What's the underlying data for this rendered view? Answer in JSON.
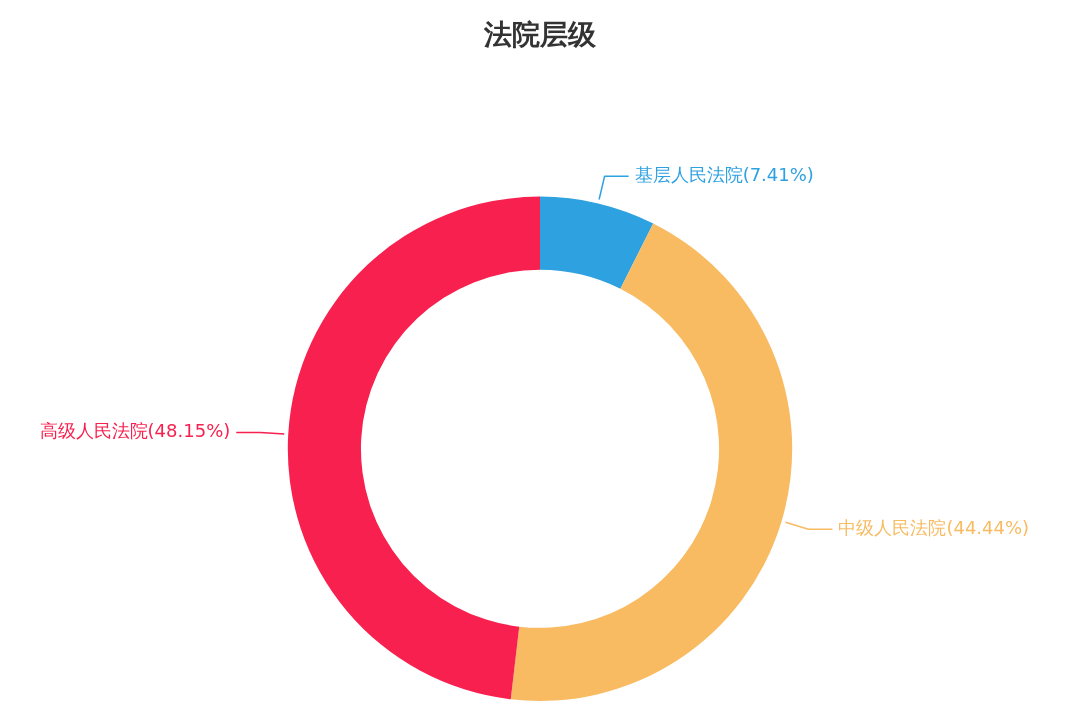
{
  "chart_data": {
    "type": "donut",
    "title": "法院层级",
    "categories": [
      "基层人民法院",
      "中级人民法院",
      "高级人民法院"
    ],
    "values": [
      7.41,
      44.44,
      48.15
    ],
    "value_labels": [
      "(7.41%)",
      "(44.44%)",
      "(48.15%)"
    ],
    "colors": [
      "#2ea1e0",
      "#f8bb62",
      "#f7204e"
    ],
    "legend": false
  }
}
